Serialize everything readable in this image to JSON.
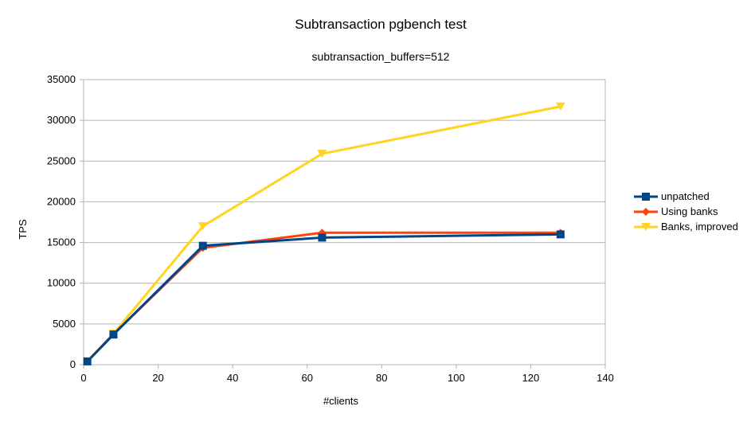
{
  "chart_data": {
    "type": "line",
    "title": "Subtransaction pgbench test",
    "subtitle": "subtransaction_buffers=512",
    "xlabel": "#clients",
    "ylabel": "TPS",
    "xlim": [
      0,
      140
    ],
    "ylim": [
      0,
      35000
    ],
    "x_ticks": [
      0,
      20,
      40,
      60,
      80,
      100,
      120,
      140
    ],
    "y_ticks": [
      0,
      5000,
      10000,
      15000,
      20000,
      25000,
      30000,
      35000
    ],
    "grid": "horizontal",
    "legend_position": "right",
    "series": [
      {
        "name": "unpatched",
        "color": "#004586",
        "marker": "square",
        "points": [
          [
            1,
            400
          ],
          [
            8,
            3700
          ],
          [
            32,
            14600
          ],
          [
            64,
            15600
          ],
          [
            128,
            16000
          ]
        ]
      },
      {
        "name": "Using banks",
        "color": "#ff420e",
        "marker": "diamond",
        "points": [
          [
            1,
            400
          ],
          [
            8,
            3750
          ],
          [
            32,
            14350
          ],
          [
            64,
            16200
          ],
          [
            128,
            16200
          ]
        ]
      },
      {
        "name": "Banks, improved",
        "color": "#ffd320",
        "marker": "triangle-down",
        "points": [
          [
            1,
            400
          ],
          [
            8,
            3800
          ],
          [
            32,
            17000
          ],
          [
            64,
            25900
          ],
          [
            128,
            31700
          ]
        ]
      }
    ]
  }
}
